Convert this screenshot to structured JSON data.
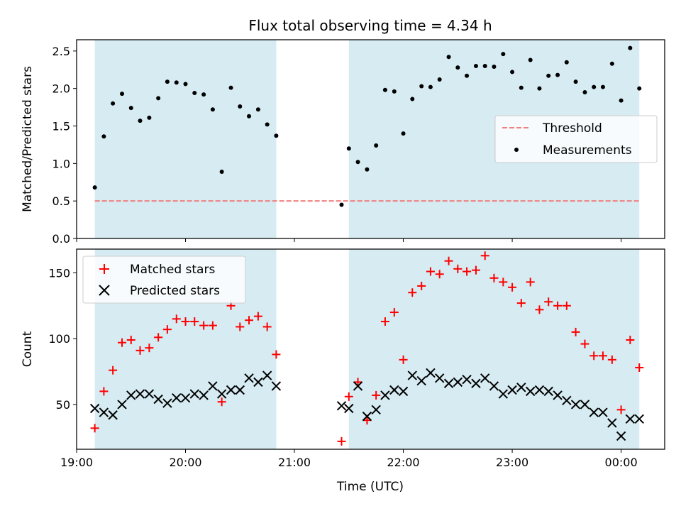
{
  "chart_data": [
    {
      "type": "scatter",
      "title": "Flux total observing time = 4.34 h",
      "ylabel": "Matched/Predicted stars",
      "xlabel": "",
      "x_unit": "hours since 19:00 UTC",
      "xlim": [
        19.0,
        24.4
      ],
      "ylim": [
        0.0,
        2.65
      ],
      "yticks": [
        0.0,
        0.5,
        1.0,
        1.5,
        2.0,
        2.5
      ],
      "ytick_labels": [
        "0.0",
        "0.5",
        "1.0",
        "1.5",
        "2.0",
        "2.5"
      ],
      "observing_windows": [
        [
          19.167,
          20.833
        ],
        [
          21.5,
          24.167
        ]
      ],
      "window_color": "#add8e6",
      "threshold": {
        "name": "Threshold",
        "value": 0.5,
        "color": "#f08080",
        "style": "dashed"
      },
      "legend": {
        "position": "center-right",
        "entries": [
          "Threshold",
          "Measurements"
        ]
      },
      "series": [
        {
          "name": "Measurements",
          "color": "#000000",
          "marker": "dot",
          "x": [
            19.167,
            19.25,
            19.333,
            19.417,
            19.5,
            19.583,
            19.667,
            19.75,
            19.833,
            19.917,
            20.0,
            20.083,
            20.167,
            20.25,
            20.333,
            20.417,
            20.5,
            20.583,
            20.667,
            20.75,
            20.833,
            21.433,
            21.5,
            21.583,
            21.667,
            21.75,
            21.833,
            21.917,
            22.0,
            22.083,
            22.167,
            22.25,
            22.333,
            22.417,
            22.5,
            22.583,
            22.667,
            22.75,
            22.833,
            22.917,
            23.0,
            23.083,
            23.167,
            23.25,
            23.333,
            23.417,
            23.5,
            23.583,
            23.667,
            23.75,
            23.833,
            23.917,
            24.0,
            24.083,
            24.167
          ],
          "y": [
            0.68,
            1.36,
            1.8,
            1.93,
            1.74,
            1.57,
            1.61,
            1.87,
            2.09,
            2.08,
            2.06,
            1.94,
            1.92,
            1.72,
            0.89,
            2.01,
            1.76,
            1.63,
            1.72,
            1.52,
            1.37,
            0.45,
            1.2,
            1.02,
            0.92,
            1.24,
            1.98,
            1.96,
            1.4,
            1.86,
            2.03,
            2.02,
            2.12,
            2.42,
            2.28,
            2.17,
            2.3,
            2.3,
            2.29,
            2.46,
            2.22,
            2.01,
            2.38,
            2.0,
            2.17,
            2.18,
            2.35,
            2.09,
            1.95,
            2.02,
            2.02,
            2.33,
            1.84,
            2.54,
            2.0
          ]
        }
      ]
    },
    {
      "type": "scatter",
      "title": "",
      "xlabel": "Time (UTC)",
      "ylabel": "Count",
      "x_unit": "hours since 19:00 UTC",
      "xlim": [
        19.0,
        24.4
      ],
      "ylim": [
        16,
        168
      ],
      "yticks": [
        50,
        100,
        150
      ],
      "ytick_labels": [
        "50",
        "100",
        "150"
      ],
      "xticks": [
        19,
        20,
        21,
        22,
        23,
        24
      ],
      "xtick_labels": [
        "19:00",
        "20:00",
        "21:00",
        "22:00",
        "23:00",
        "00:00"
      ],
      "observing_windows": [
        [
          19.167,
          20.833
        ],
        [
          21.5,
          24.167
        ]
      ],
      "window_color": "#add8e6",
      "legend": {
        "position": "top-left",
        "entries": [
          "Matched stars",
          "Predicted stars"
        ]
      },
      "series": [
        {
          "name": "Matched stars",
          "color": "#ff0000",
          "marker": "plus",
          "x": [
            19.167,
            19.25,
            19.333,
            19.417,
            19.5,
            19.583,
            19.667,
            19.75,
            19.833,
            19.917,
            20.0,
            20.083,
            20.167,
            20.25,
            20.333,
            20.417,
            20.5,
            20.583,
            20.667,
            20.75,
            20.833,
            21.433,
            21.5,
            21.583,
            21.667,
            21.75,
            21.833,
            21.917,
            22.0,
            22.083,
            22.167,
            22.25,
            22.333,
            22.417,
            22.5,
            22.583,
            22.667,
            22.75,
            22.833,
            22.917,
            23.0,
            23.083,
            23.167,
            23.25,
            23.333,
            23.417,
            23.5,
            23.583,
            23.667,
            23.75,
            23.833,
            23.917,
            24.0,
            24.083,
            24.167
          ],
          "y": [
            32,
            60,
            76,
            97,
            99,
            91,
            93,
            101,
            107,
            115,
            113,
            113,
            110,
            110,
            52,
            125,
            109,
            114,
            117,
            109,
            88,
            22,
            56,
            67,
            38,
            57,
            113,
            120,
            84,
            135,
            140,
            151,
            149,
            159,
            153,
            151,
            152,
            163,
            146,
            143,
            139,
            127,
            143,
            122,
            128,
            125,
            125,
            105,
            96,
            87,
            87,
            84,
            46,
            99,
            78
          ]
        },
        {
          "name": "Predicted stars",
          "color": "#000000",
          "marker": "x",
          "x": [
            19.167,
            19.25,
            19.333,
            19.417,
            19.5,
            19.583,
            19.667,
            19.75,
            19.833,
            19.917,
            20.0,
            20.083,
            20.167,
            20.25,
            20.333,
            20.417,
            20.5,
            20.583,
            20.667,
            20.75,
            20.833,
            21.433,
            21.5,
            21.583,
            21.667,
            21.75,
            21.833,
            21.917,
            22.0,
            22.083,
            22.167,
            22.25,
            22.333,
            22.417,
            22.5,
            22.583,
            22.667,
            22.75,
            22.833,
            22.917,
            23.0,
            23.083,
            23.167,
            23.25,
            23.333,
            23.417,
            23.5,
            23.583,
            23.667,
            23.75,
            23.833,
            23.917,
            24.0,
            24.083,
            24.167
          ],
          "y": [
            47,
            44,
            42,
            50,
            57,
            58,
            58,
            54,
            51,
            55,
            55,
            58,
            57,
            64,
            58,
            61,
            61,
            70,
            67,
            72,
            64,
            49,
            47,
            64,
            41,
            46,
            57,
            61,
            60,
            72,
            68,
            74,
            70,
            66,
            67,
            69,
            66,
            70,
            64,
            58,
            61,
            63,
            60,
            61,
            60,
            57,
            53,
            50,
            50,
            44,
            44,
            36,
            26,
            39,
            39
          ]
        }
      ]
    }
  ]
}
